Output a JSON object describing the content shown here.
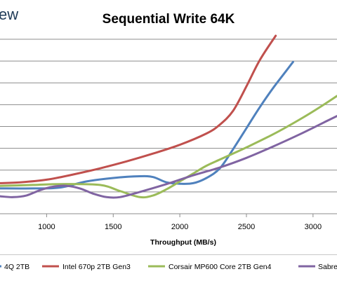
{
  "brand_text": "ew",
  "chart_data": {
    "type": "line",
    "title": "Sequential Write 64K",
    "xlabel": "Throughput (MB/s)",
    "ylabel": "",
    "x_ticks": [
      1000,
      1500,
      2000,
      2500,
      3000
    ],
    "xlim": [
      650,
      3180
    ],
    "ylim": [
      0,
      10
    ],
    "grid": true,
    "legend_position": "bottom",
    "series": [
      {
        "name": "4Q 2TB",
        "color": "#4f81bd",
        "points": [
          [
            650,
            1.45
          ],
          [
            900,
            1.45
          ],
          [
            1100,
            1.5
          ],
          [
            1300,
            1.85
          ],
          [
            1500,
            2.05
          ],
          [
            1700,
            2.15
          ],
          [
            1800,
            2.1
          ],
          [
            1900,
            1.8
          ],
          [
            2000,
            1.72
          ],
          [
            2100,
            1.75
          ],
          [
            2200,
            2.05
          ],
          [
            2300,
            2.6
          ],
          [
            2400,
            3.7
          ],
          [
            2500,
            4.9
          ],
          [
            2600,
            6.1
          ],
          [
            2700,
            7.2
          ],
          [
            2800,
            8.2
          ],
          [
            2850,
            8.7
          ]
        ]
      },
      {
        "name": "Intel 670p 2TB Gen3",
        "color": "#c0504d",
        "points": [
          [
            650,
            1.75
          ],
          [
            800,
            1.8
          ],
          [
            1000,
            1.95
          ],
          [
            1200,
            2.25
          ],
          [
            1400,
            2.6
          ],
          [
            1600,
            3.0
          ],
          [
            1800,
            3.45
          ],
          [
            2000,
            3.95
          ],
          [
            2200,
            4.6
          ],
          [
            2300,
            5.1
          ],
          [
            2400,
            5.9
          ],
          [
            2500,
            7.3
          ],
          [
            2600,
            8.8
          ],
          [
            2720,
            10.2
          ]
        ]
      },
      {
        "name": "Corsair MP600 Core 2TB Gen4",
        "color": "#9bbb59",
        "points": [
          [
            650,
            1.6
          ],
          [
            900,
            1.65
          ],
          [
            1100,
            1.7
          ],
          [
            1400,
            1.65
          ],
          [
            1550,
            1.3
          ],
          [
            1700,
            0.95
          ],
          [
            1800,
            1.05
          ],
          [
            1900,
            1.4
          ],
          [
            2000,
            1.85
          ],
          [
            2100,
            2.3
          ],
          [
            2200,
            2.75
          ],
          [
            2300,
            3.1
          ],
          [
            2400,
            3.45
          ],
          [
            2500,
            3.8
          ],
          [
            2700,
            4.55
          ],
          [
            2900,
            5.4
          ],
          [
            3050,
            6.1
          ],
          [
            3180,
            6.75
          ]
        ]
      },
      {
        "name": "Sabre",
        "color": "#8064a2",
        "points": [
          [
            650,
            1.0
          ],
          [
            750,
            0.95
          ],
          [
            850,
            1.05
          ],
          [
            950,
            1.35
          ],
          [
            1050,
            1.55
          ],
          [
            1150,
            1.6
          ],
          [
            1250,
            1.45
          ],
          [
            1350,
            1.15
          ],
          [
            1450,
            0.95
          ],
          [
            1550,
            0.95
          ],
          [
            1700,
            1.25
          ],
          [
            1900,
            1.7
          ],
          [
            2100,
            2.2
          ],
          [
            2300,
            2.65
          ],
          [
            2500,
            3.2
          ],
          [
            2700,
            3.85
          ],
          [
            2900,
            4.55
          ],
          [
            3100,
            5.3
          ],
          [
            3180,
            5.6
          ]
        ]
      }
    ]
  },
  "legend": [
    {
      "label": "4Q 2TB",
      "color": "#4f81bd"
    },
    {
      "label": "Intel 670p 2TB Gen3",
      "color": "#c0504d"
    },
    {
      "label": "Corsair MP600 Core 2TB Gen4",
      "color": "#9bbb59"
    },
    {
      "label": "Sabre",
      "color": "#8064a2"
    }
  ],
  "colors": {
    "grid": "#8c8c8c",
    "axis": "#8c8c8c",
    "frame": "#c8c8c8"
  }
}
